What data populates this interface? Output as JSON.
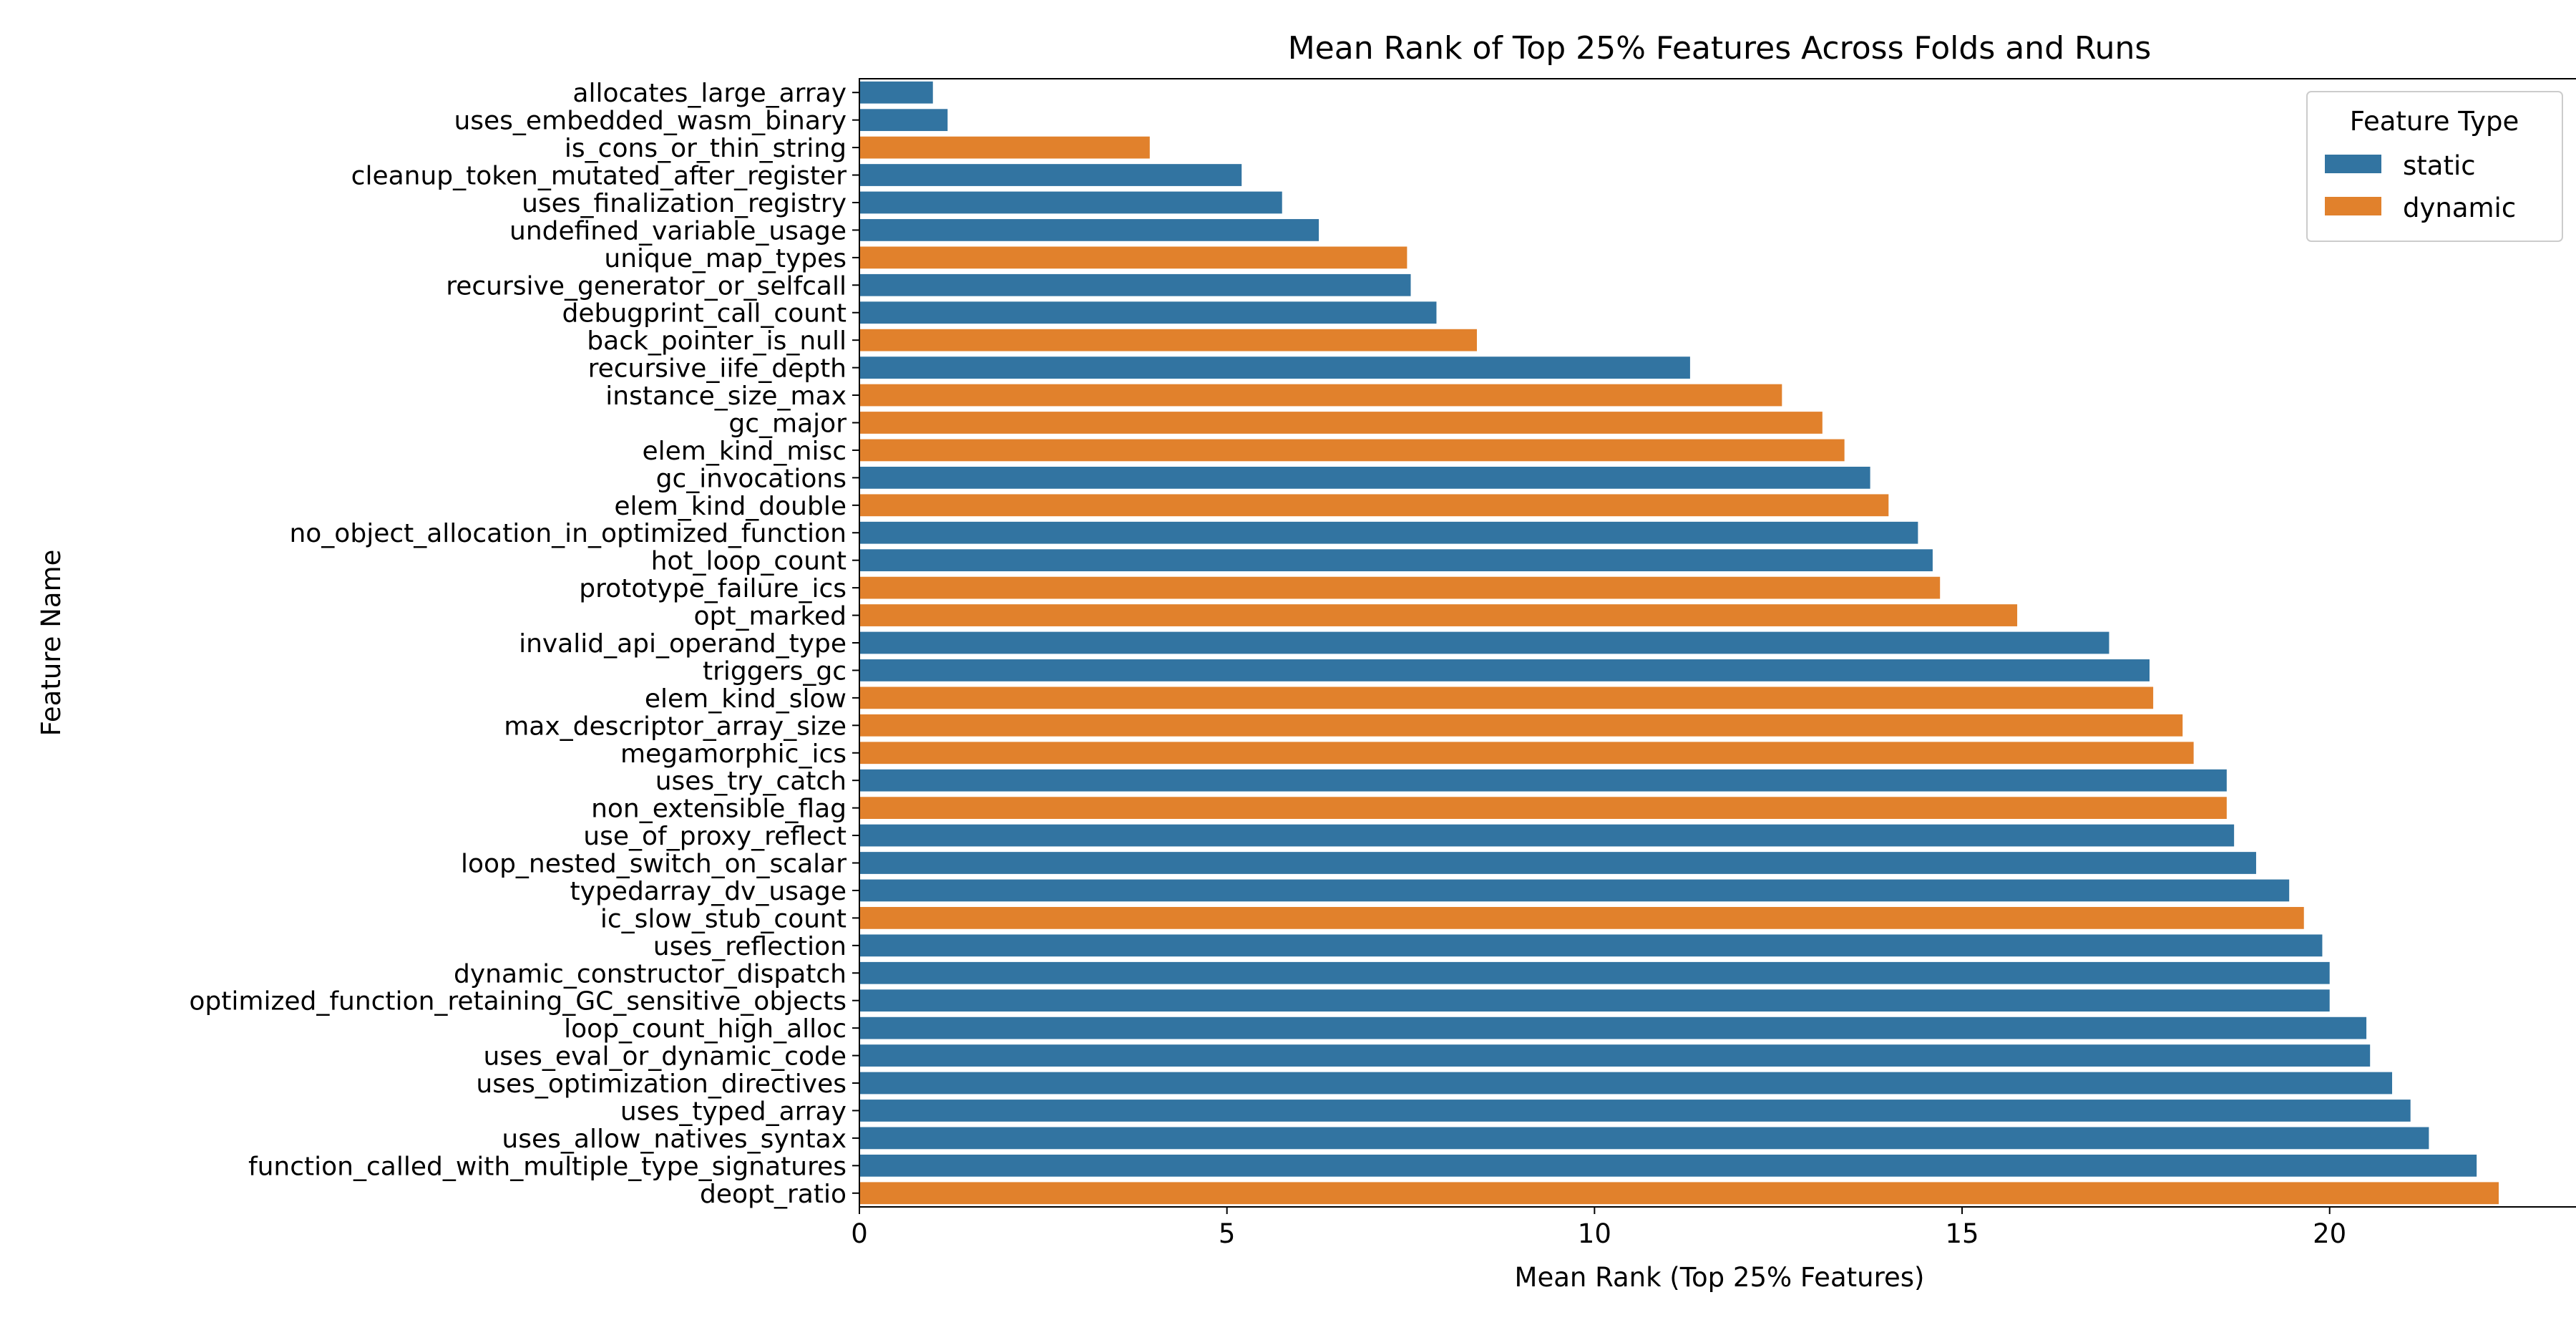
{
  "chart_data": {
    "type": "bar",
    "orientation": "horizontal",
    "title": "Mean Rank of Top 25% Features Across Folds and Runs",
    "xlabel": "Mean Rank (Top 25% Features)",
    "ylabel": "Feature Name",
    "xlim": [
      0,
      23.4
    ],
    "xticks": [
      0,
      5,
      10,
      15,
      20
    ],
    "grid": false,
    "legend": {
      "title": "Feature Type",
      "placement": "top-right",
      "entries": [
        {
          "label": "static",
          "color": "#3274a1"
        },
        {
          "label": "dynamic",
          "color": "#e1812c"
        }
      ]
    },
    "colors": {
      "static": "#3274a1",
      "dynamic": "#e1812c"
    },
    "bars": [
      {
        "name": "allocates_large_array",
        "type": "static",
        "value": 1.0
      },
      {
        "name": "uses_embedded_wasm_binary",
        "type": "static",
        "value": 1.2
      },
      {
        "name": "is_cons_or_thin_string",
        "type": "dynamic",
        "value": 3.95
      },
      {
        "name": "cleanup_token_mutated_after_register",
        "type": "static",
        "value": 5.2
      },
      {
        "name": "uses_finalization_registry",
        "type": "static",
        "value": 5.75
      },
      {
        "name": "undefined_variable_usage",
        "type": "static",
        "value": 6.25
      },
      {
        "name": "unique_map_types",
        "type": "dynamic",
        "value": 7.45
      },
      {
        "name": "recursive_generator_or_selfcall",
        "type": "static",
        "value": 7.5
      },
      {
        "name": "debugprint_call_count",
        "type": "static",
        "value": 7.85
      },
      {
        "name": "back_pointer_is_null",
        "type": "dynamic",
        "value": 8.4
      },
      {
        "name": "recursive_iife_depth",
        "type": "static",
        "value": 11.3
      },
      {
        "name": "instance_size_max",
        "type": "dynamic",
        "value": 12.55
      },
      {
        "name": "gc_major",
        "type": "dynamic",
        "value": 13.1
      },
      {
        "name": "elem_kind_misc",
        "type": "dynamic",
        "value": 13.4
      },
      {
        "name": "gc_invocations",
        "type": "static",
        "value": 13.75
      },
      {
        "name": "elem_kind_double",
        "type": "dynamic",
        "value": 14.0
      },
      {
        "name": "no_object_allocation_in_optimized_function",
        "type": "static",
        "value": 14.4
      },
      {
        "name": "hot_loop_count",
        "type": "static",
        "value": 14.6
      },
      {
        "name": "prototype_failure_ics",
        "type": "dynamic",
        "value": 14.7
      },
      {
        "name": "opt_marked",
        "type": "dynamic",
        "value": 15.75
      },
      {
        "name": "invalid_api_operand_type",
        "type": "static",
        "value": 17.0
      },
      {
        "name": "triggers_gc",
        "type": "static",
        "value": 17.55
      },
      {
        "name": "elem_kind_slow",
        "type": "dynamic",
        "value": 17.6
      },
      {
        "name": "max_descriptor_array_size",
        "type": "dynamic",
        "value": 18.0
      },
      {
        "name": "megamorphic_ics",
        "type": "dynamic",
        "value": 18.15
      },
      {
        "name": "uses_try_catch",
        "type": "static",
        "value": 18.6
      },
      {
        "name": "non_extensible_flag",
        "type": "dynamic",
        "value": 18.6
      },
      {
        "name": "use_of_proxy_reflect",
        "type": "static",
        "value": 18.7
      },
      {
        "name": "loop_nested_switch_on_scalar",
        "type": "static",
        "value": 19.0
      },
      {
        "name": "typedarray_dv_usage",
        "type": "static",
        "value": 19.45
      },
      {
        "name": "ic_slow_stub_count",
        "type": "dynamic",
        "value": 19.65
      },
      {
        "name": "uses_reflection",
        "type": "static",
        "value": 19.9
      },
      {
        "name": "dynamic_constructor_dispatch",
        "type": "static",
        "value": 20.0
      },
      {
        "name": "optimized_function_retaining_GC_sensitive_objects",
        "type": "static",
        "value": 20.0
      },
      {
        "name": "loop_count_high_alloc",
        "type": "static",
        "value": 20.5
      },
      {
        "name": "uses_eval_or_dynamic_code",
        "type": "static",
        "value": 20.55
      },
      {
        "name": "uses_optimization_directives",
        "type": "static",
        "value": 20.85
      },
      {
        "name": "uses_typed_array",
        "type": "static",
        "value": 21.1
      },
      {
        "name": "uses_allow_natives_syntax",
        "type": "static",
        "value": 21.35
      },
      {
        "name": "function_called_with_multiple_type_signatures",
        "type": "static",
        "value": 22.0
      },
      {
        "name": "deopt_ratio",
        "type": "dynamic",
        "value": 22.3
      }
    ]
  }
}
